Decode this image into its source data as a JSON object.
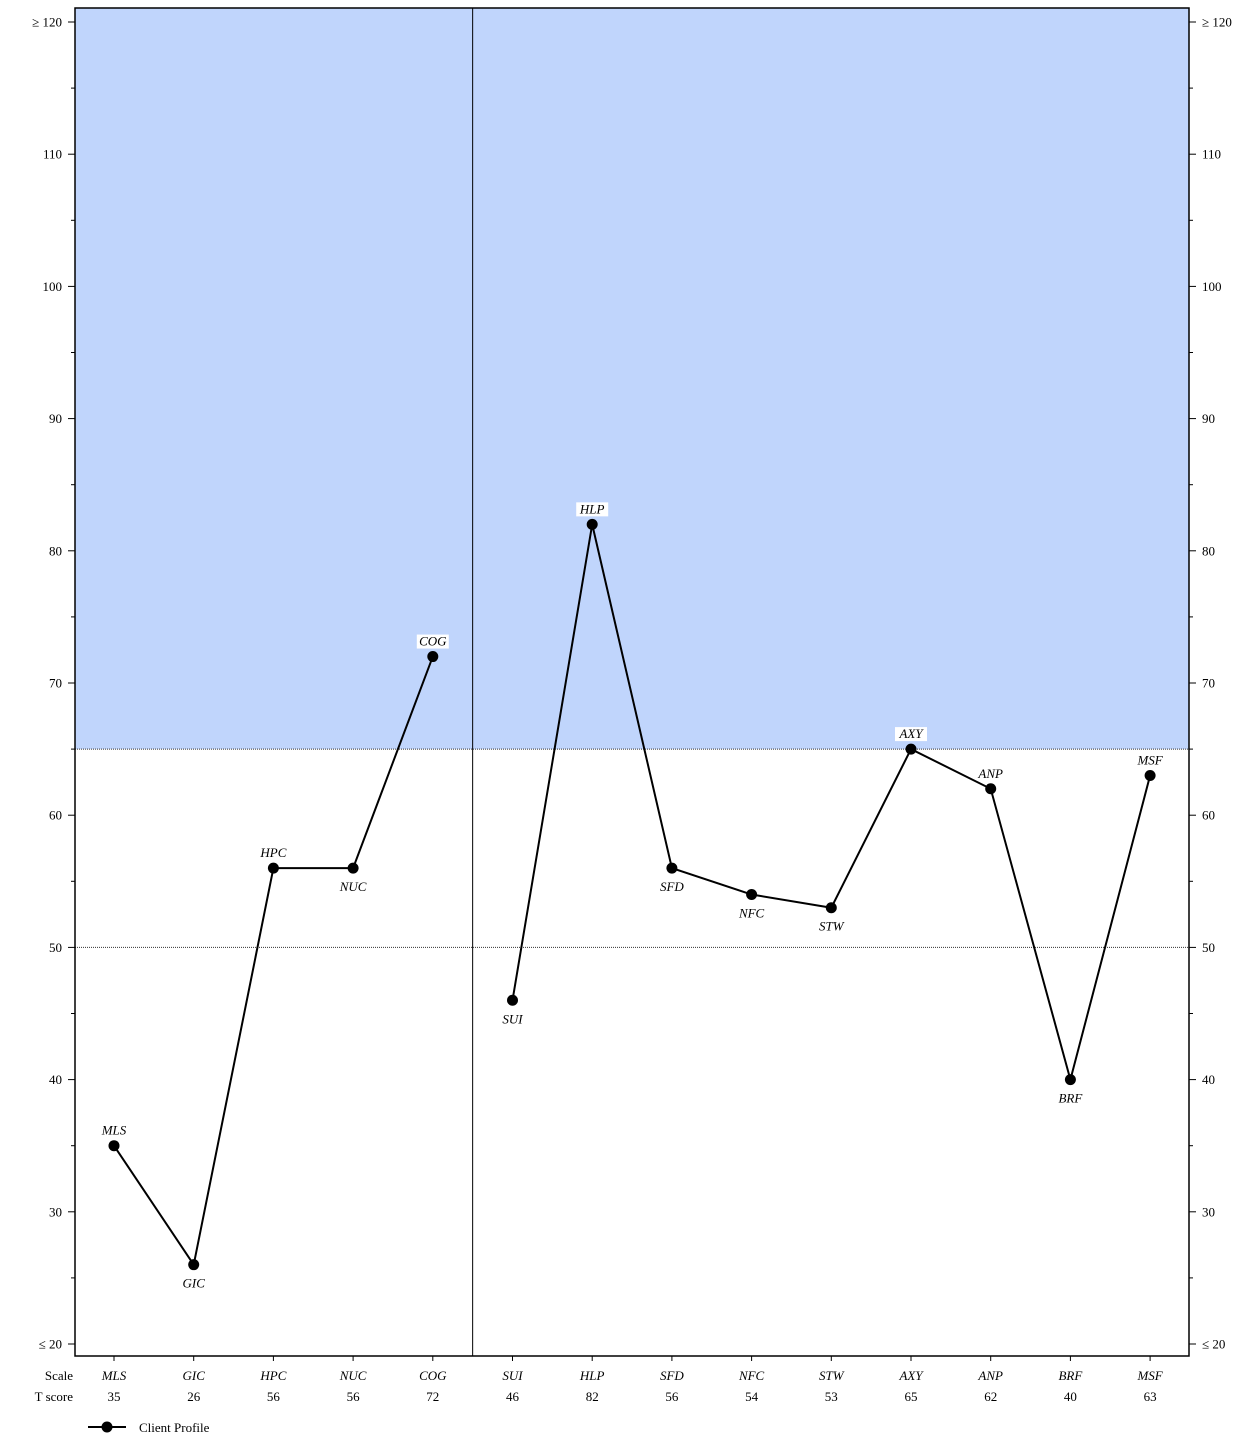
{
  "colors": {
    "shade": "#c0d5fc",
    "line": "#000000",
    "background": "#ffffff"
  },
  "chart_data": {
    "type": "line",
    "ylim": [
      20,
      120
    ],
    "ytick_values": [
      20,
      30,
      40,
      50,
      60,
      70,
      80,
      90,
      100,
      110,
      120
    ],
    "ytick_labels": [
      "≤ 20",
      "30",
      "40",
      "50",
      "60",
      "70",
      "80",
      "90",
      "100",
      "110",
      "≥ 120"
    ],
    "shaded_above": 65,
    "reference_lines": [
      65,
      50
    ],
    "groups": [
      [
        "MLS",
        "GIC",
        "HPC",
        "NUC",
        "COG"
      ],
      [
        "SUI",
        "HLP",
        "SFD",
        "NFC",
        "STW",
        "AXY",
        "ANP",
        "BRF",
        "MSF"
      ]
    ],
    "categories": [
      "MLS",
      "GIC",
      "HPC",
      "NUC",
      "COG",
      "SUI",
      "HLP",
      "SFD",
      "NFC",
      "STW",
      "AXY",
      "ANP",
      "BRF",
      "MSF"
    ],
    "series": [
      {
        "name": "Client Profile",
        "values": [
          35,
          26,
          56,
          56,
          72,
          46,
          82,
          56,
          54,
          53,
          65,
          62,
          40,
          63
        ]
      }
    ],
    "point_label_positions": [
      "above",
      "below",
      "above",
      "below",
      "above",
      "below",
      "above",
      "below",
      "below",
      "below",
      "above",
      "above",
      "below",
      "above"
    ],
    "bottom_rows": {
      "scale_label": "Scale",
      "tscore_label": "T score"
    },
    "legend": {
      "label": "Client Profile",
      "position": "bottom-left"
    }
  }
}
